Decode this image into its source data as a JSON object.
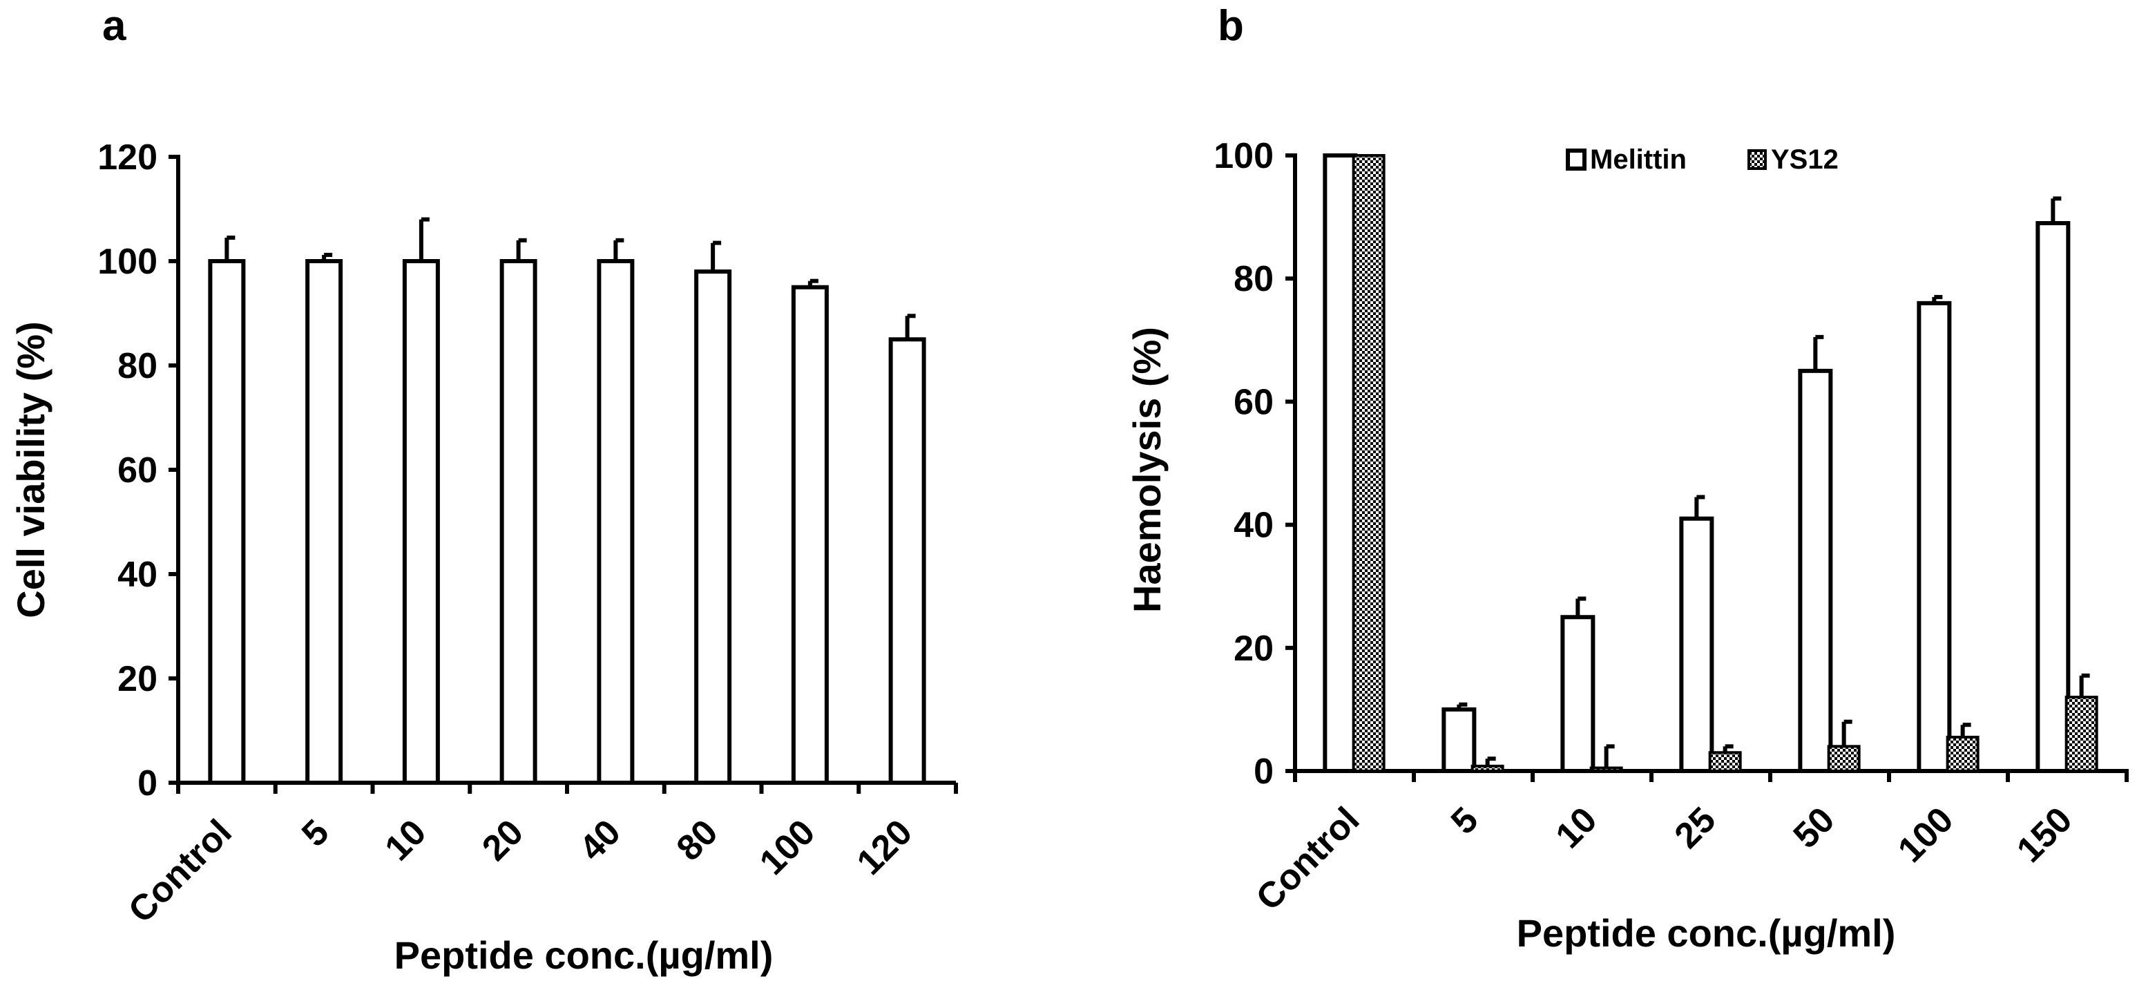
{
  "chart_data": [
    {
      "panel": "a",
      "type": "bar",
      "title": "",
      "xlabel": "Peptide conc.(µg/ml)",
      "ylabel": "Cell viability (%)",
      "ylim": [
        0,
        120
      ],
      "yticks": [
        0,
        20,
        40,
        60,
        80,
        100,
        120
      ],
      "categories": [
        "Control",
        "5",
        "10",
        "20",
        "40",
        "80",
        "100",
        "120"
      ],
      "series": [
        {
          "name": "Cell viability",
          "style": "open",
          "values": [
            100,
            100,
            100,
            100,
            100,
            98,
            95,
            85
          ],
          "errors": [
            4.5,
            1.2,
            8,
            4,
            4,
            5.5,
            1.2,
            4.5
          ]
        }
      ],
      "grid": false
    },
    {
      "panel": "b",
      "type": "bar",
      "title": "",
      "xlabel": "Peptide conc.(µg/ml)",
      "ylabel": "Haemolysis (%)",
      "ylim": [
        0,
        100
      ],
      "yticks": [
        0,
        20,
        40,
        60,
        80,
        100
      ],
      "categories": [
        "Control",
        "5",
        "10",
        "25",
        "50",
        "100",
        "150"
      ],
      "series": [
        {
          "name": "Melittin",
          "style": "open",
          "values": [
            100,
            10,
            25,
            41,
            65,
            76,
            89
          ],
          "errors": [
            0,
            0.8,
            3,
            3.5,
            5.5,
            1,
            4
          ]
        },
        {
          "name": "YS12",
          "style": "hatch",
          "values": [
            100,
            0.8,
            0.5,
            3,
            4,
            5.5,
            12
          ],
          "errors": [
            0,
            1.2,
            3.5,
            1,
            4,
            2,
            3.5
          ]
        }
      ],
      "legend": "top-center",
      "grid": false
    }
  ]
}
